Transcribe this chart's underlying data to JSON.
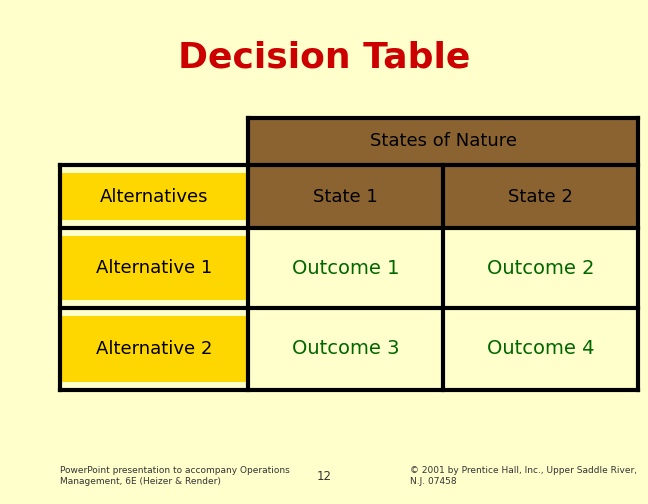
{
  "title": "Decision Table",
  "title_color": "#CC0000",
  "title_fontsize": 26,
  "background_color": "#FFFFCC",
  "table": {
    "header_top_text": "States of Nature",
    "header_top_bg": "#8B6331",
    "header_top_text_color": "#000000",
    "col_headers": [
      "State 1",
      "State 2"
    ],
    "col_header_bg": "#8B6331",
    "col_header_text_color": "#000000",
    "row_header_label": "Alternatives",
    "row_header_bg": "#FFD700",
    "row_headers": [
      "Alternative 1",
      "Alternative 2"
    ],
    "row_header_row_bg": "#FFD700",
    "cells": [
      [
        "Outcome 1",
        "Outcome 2"
      ],
      [
        "Outcome 3",
        "Outcome 4"
      ]
    ],
    "cell_text_color": "#006600",
    "cell_bg": "#FFFFCC",
    "line_color": "#000000",
    "line_width": 3.0
  },
  "footer_left": "PowerPoint presentation to accompany Operations\nManagement, 6E (Heizer & Render)",
  "footer_center": "12",
  "footer_right": "© 2001 by Prentice Hall, Inc., Upper Saddle River,\nN.J. 07458",
  "footer_fontsize": 6.5,
  "footer_color": "#333333",
  "fig_width": 6.48,
  "fig_height": 5.04,
  "dpi": 100
}
